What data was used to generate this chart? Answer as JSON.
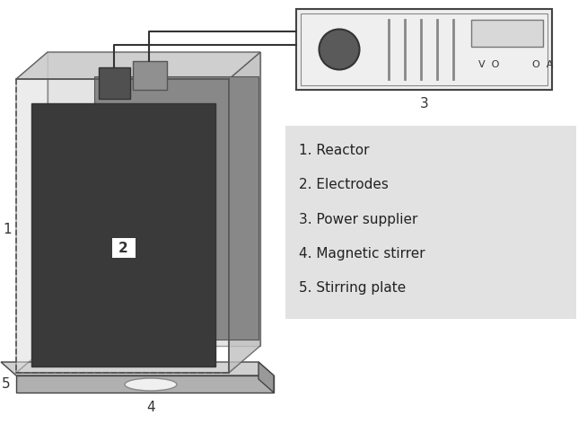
{
  "background_color": "#ffffff",
  "legend_bg": "#e2e2e2",
  "legend_items": [
    "1. Reactor",
    "2. Electrodes",
    "3. Power supplier",
    "4. Magnetic stirrer",
    "5. Stirring plate"
  ],
  "colors": {
    "wire_color": "#333333",
    "label_color": "#333333",
    "glass_edge": "#555555",
    "glass_face": "#d8d8d8",
    "glass_side": "#c0c0c0",
    "glass_top": "#cccccc",
    "electrode_dark": "#3a3a3a",
    "electrode_back": "#7a7a7a",
    "connector_dark": "#606060",
    "connector_light": "#909090",
    "plate_top": "#d0d0d0",
    "plate_front": "#b0b0b0",
    "plate_right": "#999999",
    "plate_bottom": "#888888",
    "stirrer_white": "#f0f0f0",
    "ps_bg": "#efefef",
    "ps_border": "#444444",
    "ps_button": "#5a5a5a",
    "ps_stripe": "#888888",
    "ps_display": "#d8d8d8"
  }
}
